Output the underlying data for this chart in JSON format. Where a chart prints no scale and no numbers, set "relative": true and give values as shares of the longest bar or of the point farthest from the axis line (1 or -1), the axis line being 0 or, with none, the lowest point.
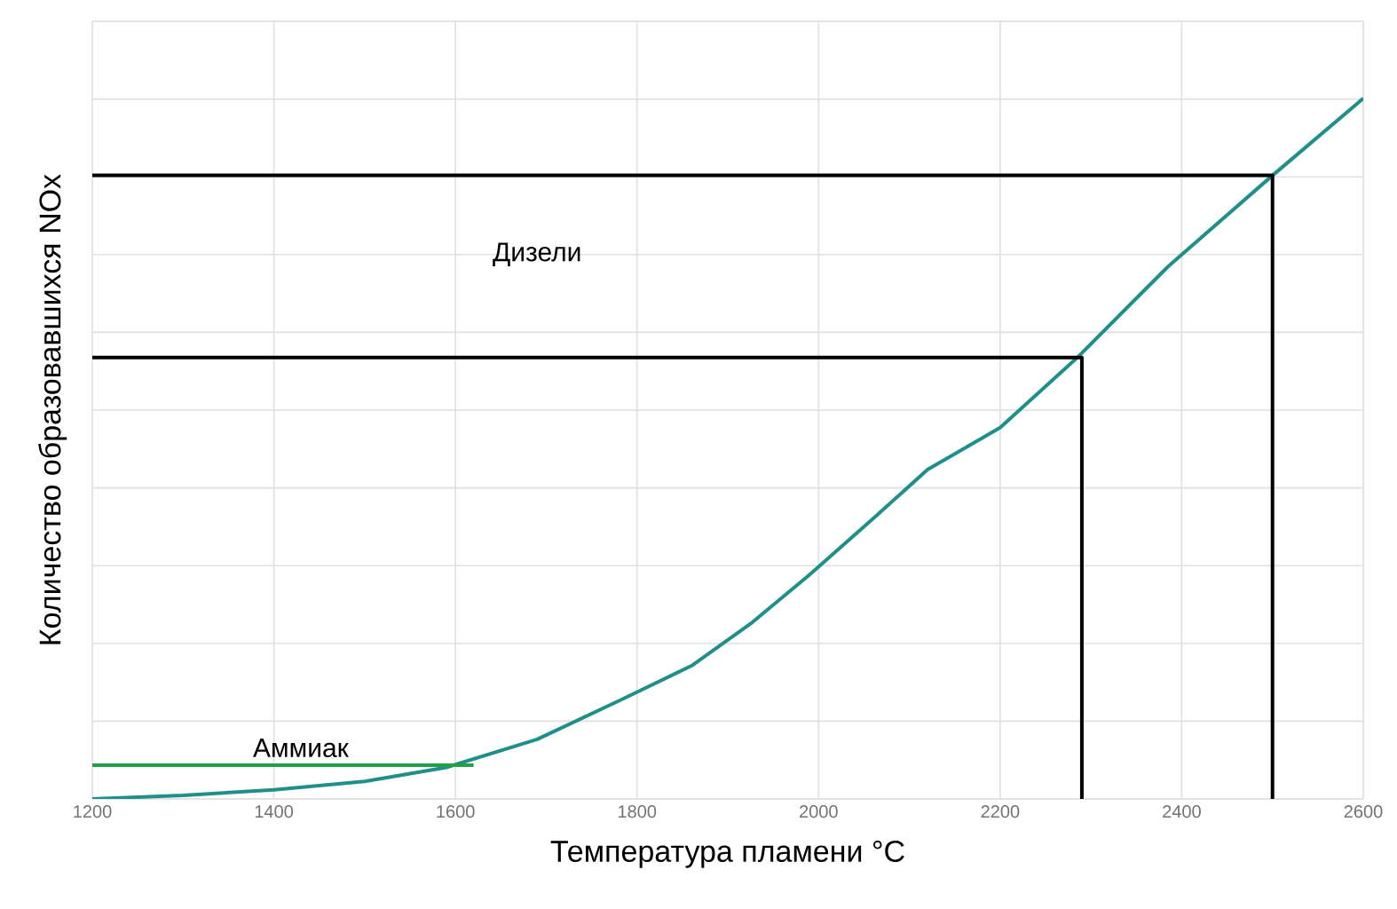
{
  "chart_data": {
    "type": "line",
    "relative": true,
    "xlabel": "Температура пламени °C",
    "ylabel": "Количество образовавшихся NOx",
    "xlim": [
      1200,
      2600
    ],
    "xticks": [
      1200,
      1400,
      1600,
      1800,
      2000,
      2200,
      2400,
      2600
    ],
    "grid": true,
    "tick_labels": "x",
    "series": [
      {
        "color": "#1f8f8a",
        "x": [
          1200,
          1300,
          1400,
          1500,
          1590,
          1690,
          1780,
          1860,
          1925,
          1990,
          2060,
          2120,
          2200,
          2285,
          2385,
          2500,
          2600
        ],
        "values": [
          0.0,
          0.005,
          0.013,
          0.025,
          0.045,
          0.085,
          0.14,
          0.19,
          0.25,
          0.32,
          0.4,
          0.47,
          0.53,
          0.63,
          0.76,
          0.89,
          1.0
        ]
      },
      {
        "color": "#22a045",
        "x": [
          1200,
          1620
        ],
        "values": [
          0.048,
          0.048
        ]
      },
      {
        "color": "#000000",
        "x": [
          1200,
          2290,
          2290
        ],
        "values": [
          0.63,
          0.63,
          0.0
        ]
      },
      {
        "color": "#000000",
        "x": [
          1200,
          2500,
          2500
        ],
        "values": [
          0.89,
          0.89,
          0.0
        ]
      }
    ],
    "annotations": [
      "Дизели",
      {
        "text": "Аммиак",
        "x": 1370,
        "y": 0.048
      }
    ]
  }
}
